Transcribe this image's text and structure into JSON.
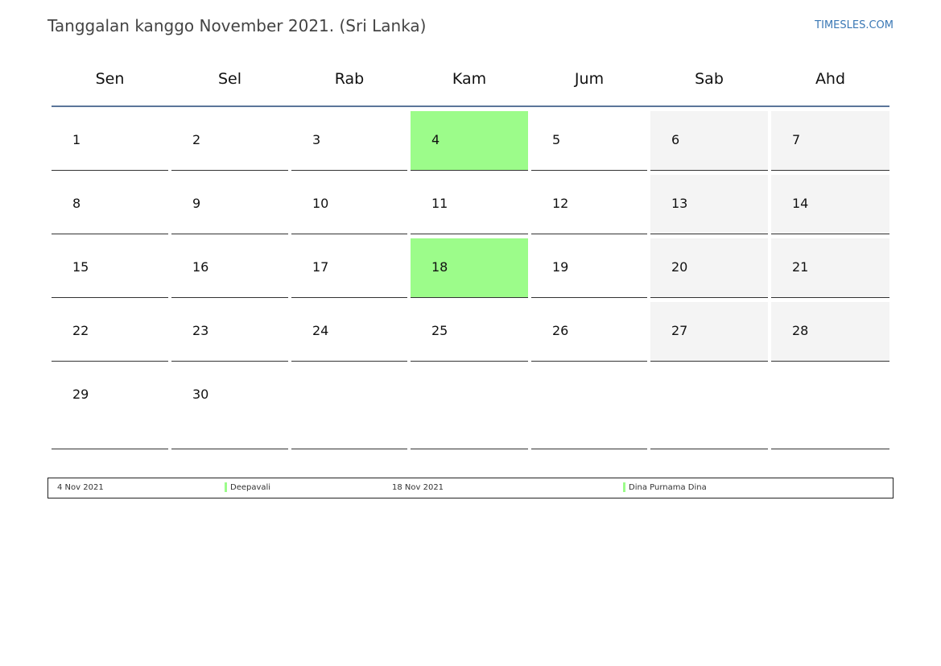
{
  "title": "Tanggalan kanggo November 2021. (Sri Lanka)",
  "brand": "TIMESLES.COM",
  "colors": {
    "holiday": "#9cfc8a",
    "weekend": "#f4f4f4",
    "header_rule": "#5b7599",
    "brand": "#3a78b5"
  },
  "weekdays": [
    "Sen",
    "Sel",
    "Rab",
    "Kam",
    "Jum",
    "Sab",
    "Ahd"
  ],
  "weeks": [
    [
      "1",
      "2",
      "3",
      "4",
      "5",
      "6",
      "7"
    ],
    [
      "8",
      "9",
      "10",
      "11",
      "12",
      "13",
      "14"
    ],
    [
      "15",
      "16",
      "17",
      "18",
      "19",
      "20",
      "21"
    ],
    [
      "22",
      "23",
      "24",
      "25",
      "26",
      "27",
      "28"
    ],
    [
      "29",
      "30",
      "",
      "",
      "",
      "",
      ""
    ]
  ],
  "legend": [
    {
      "date": "4 Nov 2021",
      "name": "Deepavali"
    },
    {
      "date": "18 Nov 2021",
      "name": "Dina Purnama Dina"
    }
  ]
}
